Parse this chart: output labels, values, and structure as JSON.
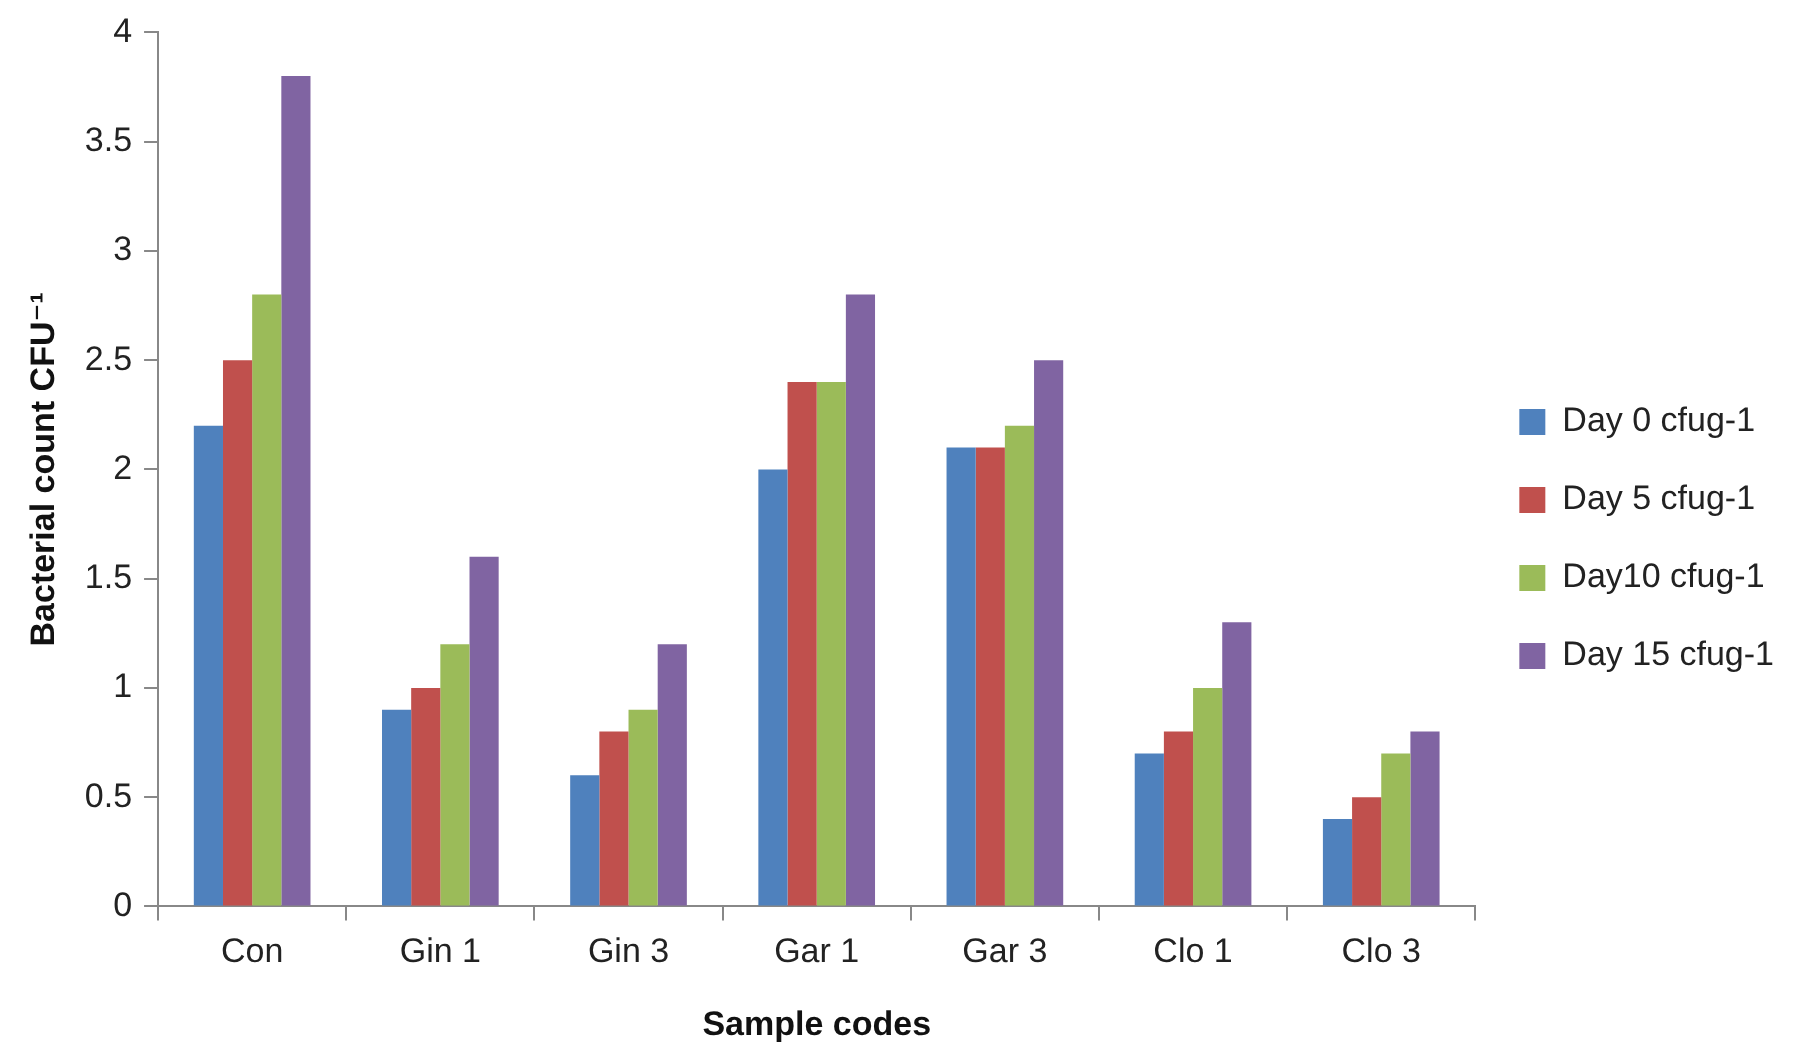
{
  "chart_data": {
    "type": "bar",
    "xlabel": "Sample codes",
    "ylabel": "Bacterial count CFU⁻¹",
    "categories": [
      "Con",
      "Gin 1",
      "Gin 3",
      "Gar 1",
      "Gar 3",
      "Clo 1",
      "Clo 3"
    ],
    "series": [
      {
        "name": "Day 0 cfug-1",
        "color": "#4f81bd",
        "values": [
          2.2,
          0.9,
          0.6,
          2.0,
          2.1,
          0.7,
          0.4
        ]
      },
      {
        "name": "Day 5 cfug-1",
        "color": "#c0504d",
        "values": [
          2.5,
          1.0,
          0.8,
          2.4,
          2.1,
          0.8,
          0.5
        ]
      },
      {
        "name": "Day10 cfug-1",
        "color": "#9bbb59",
        "values": [
          2.8,
          1.2,
          0.9,
          2.4,
          2.2,
          1.0,
          0.7
        ]
      },
      {
        "name": "Day 15 cfug-1",
        "color": "#8064a2",
        "values": [
          3.8,
          1.6,
          1.2,
          2.8,
          2.5,
          1.3,
          0.8
        ]
      }
    ],
    "ylim": [
      0,
      4
    ],
    "yticks": [
      0,
      0.5,
      1,
      1.5,
      2,
      2.5,
      3,
      3.5,
      4
    ],
    "grid": false,
    "legend": "right"
  }
}
